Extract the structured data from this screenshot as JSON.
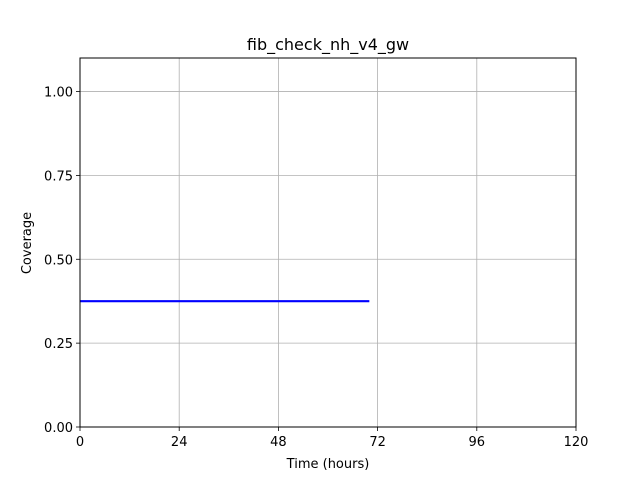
{
  "chart_data": {
    "type": "line",
    "title": "fib_check_nh_v4_gw",
    "xlabel": "Time (hours)",
    "ylabel": "Coverage",
    "xlim": [
      0,
      120
    ],
    "ylim": [
      0,
      1.1
    ],
    "xticks": [
      0,
      24,
      48,
      72,
      96,
      120
    ],
    "xtick_labels": [
      "0",
      "24",
      "48",
      "72",
      "96",
      "120"
    ],
    "yticks": [
      0,
      0.25,
      0.5,
      0.75,
      1.0
    ],
    "ytick_labels": [
      "0.00",
      "0.25",
      "0.50",
      "0.75",
      "1.00"
    ],
    "grid": true,
    "legend": "none",
    "series": [
      {
        "color": "#0000ff",
        "x": [
          0,
          70
        ],
        "y": [
          0.375,
          0.375
        ]
      }
    ]
  }
}
